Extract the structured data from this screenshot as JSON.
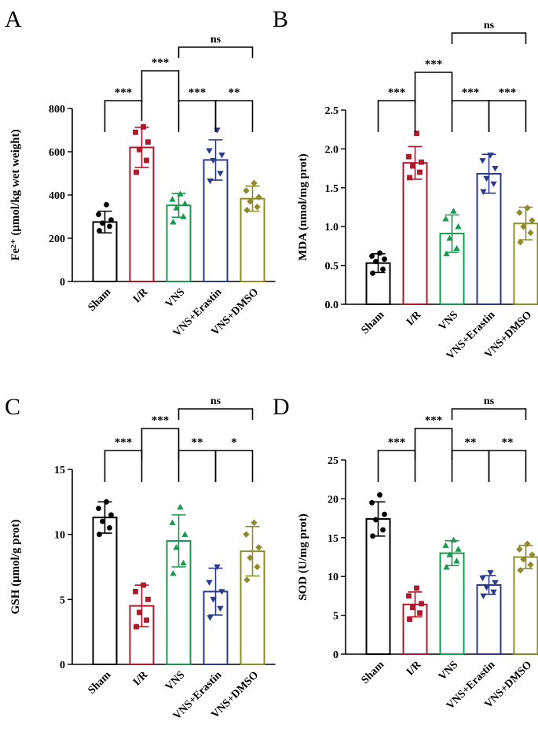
{
  "chart_data": [
    {
      "panel": "A",
      "type": "bar",
      "categories": [
        "Sham",
        "I/R",
        "VNS",
        "VNS+Erastin",
        "VNS+DMSO"
      ],
      "colors": [
        "#000000",
        "#b2182b",
        "#1a9850",
        "#2b3a8c",
        "#8c8c2a"
      ],
      "markers": [
        "circle",
        "square",
        "triangle-up",
        "triangle-down",
        "diamond"
      ],
      "ylabel": "Fe²⁺ (μmol/kg wet weight)",
      "ylim": [
        0,
        800
      ],
      "yticks": [
        0,
        200,
        400,
        600,
        800
      ],
      "means": [
        275,
        620,
        352,
        562,
        383
      ],
      "sd": [
        50,
        93,
        55,
        93,
        58
      ],
      "points": [
        [
          235,
          255,
          270,
          285,
          310,
          355
        ],
        [
          505,
          560,
          610,
          645,
          690,
          715
        ],
        [
          275,
          300,
          340,
          360,
          380,
          405
        ],
        [
          465,
          500,
          560,
          585,
          605,
          700
        ],
        [
          330,
          345,
          370,
          390,
          420,
          455
        ]
      ],
      "comparisons": [
        {
          "a": 0,
          "b": 1,
          "label": "***"
        },
        {
          "a": 1,
          "b": 2,
          "label": "***"
        },
        {
          "a": 2,
          "b": 3,
          "label": "***"
        },
        {
          "a": 3,
          "b": 4,
          "label": "**"
        },
        {
          "a": 2,
          "b": 4,
          "label": "ns"
        }
      ]
    },
    {
      "panel": "B",
      "type": "bar",
      "categories": [
        "Sham",
        "I/R",
        "VNS",
        "VNS+Erastin",
        "VNS+DMSO"
      ],
      "colors": [
        "#000000",
        "#b2182b",
        "#1a9850",
        "#2b3a8c",
        "#8c8c2a"
      ],
      "markers": [
        "circle",
        "square",
        "triangle-up",
        "triangle-down",
        "diamond"
      ],
      "ylabel": "MDA (nmol/mg prot)",
      "ylim": [
        0,
        2.5
      ],
      "yticks": [
        0.0,
        0.5,
        1.0,
        1.5,
        2.0,
        2.5
      ],
      "means": [
        0.53,
        1.82,
        0.91,
        1.68,
        1.04
      ],
      "sd": [
        0.12,
        0.21,
        0.24,
        0.25,
        0.21
      ],
      "points": [
        [
          0.4,
          0.45,
          0.55,
          0.58,
          0.62,
          0.66
        ],
        [
          1.63,
          1.7,
          1.78,
          1.83,
          1.9,
          2.2
        ],
        [
          0.65,
          0.72,
          0.85,
          1.0,
          1.1,
          1.2
        ],
        [
          1.45,
          1.55,
          1.62,
          1.75,
          1.85,
          1.92
        ],
        [
          0.8,
          0.92,
          1.0,
          1.08,
          1.18,
          1.24
        ]
      ],
      "comparisons": [
        {
          "a": 0,
          "b": 1,
          "label": "***"
        },
        {
          "a": 1,
          "b": 2,
          "label": "***"
        },
        {
          "a": 2,
          "b": 3,
          "label": "***"
        },
        {
          "a": 3,
          "b": 4,
          "label": "***"
        },
        {
          "a": 2,
          "b": 4,
          "label": "ns"
        }
      ]
    },
    {
      "panel": "C",
      "type": "bar",
      "categories": [
        "Sham",
        "I/R",
        "VNS",
        "VNS+Erastin",
        "VNS+DMSO"
      ],
      "colors": [
        "#000000",
        "#b2182b",
        "#1a9850",
        "#2b3a8c",
        "#8c8c2a"
      ],
      "markers": [
        "circle",
        "square",
        "triangle-up",
        "triangle-down",
        "diamond"
      ],
      "ylabel": "GSH (μmol/g prot)",
      "ylim": [
        0,
        15
      ],
      "yticks": [
        0,
        5,
        10,
        15
      ],
      "means": [
        11.3,
        4.5,
        9.5,
        5.6,
        8.7
      ],
      "sd": [
        1.2,
        1.6,
        2.0,
        1.8,
        1.9
      ],
      "points": [
        [
          10.0,
          10.5,
          11.0,
          11.5,
          12.0,
          12.5
        ],
        [
          2.9,
          3.4,
          4.0,
          5.0,
          5.6,
          6.1
        ],
        [
          7.0,
          7.8,
          9.0,
          10.0,
          10.9,
          12.1
        ],
        [
          3.6,
          4.3,
          5.0,
          5.6,
          6.3,
          7.5
        ],
        [
          6.5,
          7.5,
          8.2,
          9.0,
          10.0,
          10.9
        ]
      ],
      "comparisons": [
        {
          "a": 0,
          "b": 1,
          "label": "***"
        },
        {
          "a": 1,
          "b": 2,
          "label": "***"
        },
        {
          "a": 2,
          "b": 3,
          "label": "**"
        },
        {
          "a": 3,
          "b": 4,
          "label": "*"
        },
        {
          "a": 2,
          "b": 4,
          "label": "ns"
        }
      ]
    },
    {
      "panel": "D",
      "type": "bar",
      "categories": [
        "Sham",
        "I/R",
        "VNS",
        "VNS+Erastin",
        "VNS+DMSO"
      ],
      "colors": [
        "#000000",
        "#b2182b",
        "#1a9850",
        "#2b3a8c",
        "#8c8c2a"
      ],
      "markers": [
        "circle",
        "square",
        "triangle-up",
        "triangle-down",
        "diamond"
      ],
      "ylabel": "SOD (U/mg prot)",
      "ylim": [
        0,
        25
      ],
      "yticks": [
        0,
        5,
        10,
        15,
        20,
        25
      ],
      "means": [
        17.4,
        6.4,
        13.0,
        8.9,
        12.5
      ],
      "sd": [
        2.2,
        1.6,
        1.6,
        1.2,
        1.5
      ],
      "points": [
        [
          15.2,
          16.0,
          17.3,
          18.0,
          19.5,
          20.5
        ],
        [
          4.5,
          5.3,
          6.0,
          6.5,
          7.5,
          8.5
        ],
        [
          11.2,
          12.0,
          12.8,
          13.5,
          14.0,
          14.7
        ],
        [
          7.5,
          8.0,
          8.6,
          9.2,
          9.8,
          10.5
        ],
        [
          10.8,
          11.5,
          12.2,
          12.8,
          13.5,
          14.2
        ]
      ],
      "comparisons": [
        {
          "a": 0,
          "b": 1,
          "label": "***"
        },
        {
          "a": 1,
          "b": 2,
          "label": "***"
        },
        {
          "a": 2,
          "b": 3,
          "label": "**"
        },
        {
          "a": 3,
          "b": 4,
          "label": "**"
        },
        {
          "a": 2,
          "b": 4,
          "label": "ns"
        }
      ]
    }
  ]
}
